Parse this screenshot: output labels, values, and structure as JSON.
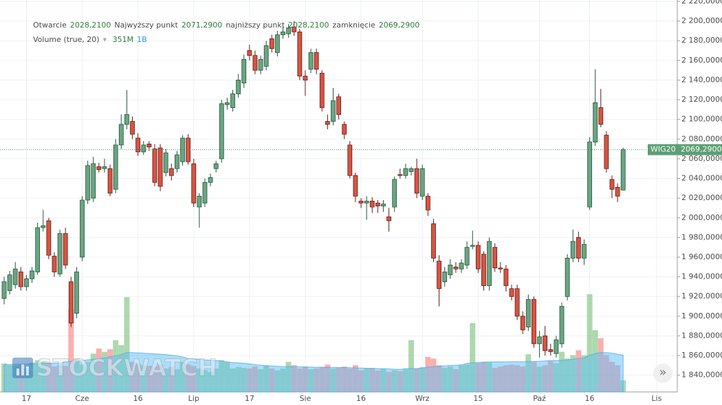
{
  "chart_data": {
    "type": "candlestick",
    "symbol": "WIG20",
    "last_price_label": "2069,2900",
    "ohlc_legend": [
      {
        "name": "Otwarcie",
        "value": "2028,2100"
      },
      {
        "name": "Najwyższy punkt",
        "value": "2071,2900"
      },
      {
        "name": "najniższy punkt",
        "value": "2028,2100"
      },
      {
        "name": "zamknięcie",
        "value": "2069,2900"
      }
    ],
    "volume_legend": "Volume (true, 20)",
    "volume_label": "351M",
    "volume_ma_label": "1B",
    "watermark": "STOCKWATCH",
    "categories": [
      null,
      null,
      null,
      null,
      "17",
      null,
      null,
      null,
      null,
      null,
      null,
      null,
      null,
      null,
      "Cze",
      null,
      null,
      null,
      null,
      null,
      null,
      null,
      null,
      null,
      "16",
      null,
      null,
      null,
      null,
      null,
      null,
      null,
      null,
      null,
      "Lip",
      null,
      null,
      null,
      null,
      null,
      null,
      null,
      null,
      null,
      "17",
      null,
      null,
      null,
      null,
      null,
      null,
      null,
      null,
      null,
      "Sie",
      null,
      null,
      null,
      null,
      null,
      null,
      null,
      null,
      null,
      "16",
      null,
      null,
      null,
      null,
      null,
      null,
      null,
      null,
      null,
      null,
      "Wrz",
      null,
      null,
      null,
      null,
      null,
      null,
      null,
      null,
      null,
      "15",
      null,
      null,
      null,
      null,
      null,
      null,
      null,
      null,
      null,
      null,
      "Paź",
      null,
      null,
      null,
      null,
      null,
      null,
      null,
      null,
      "16",
      null,
      null,
      null,
      null,
      null,
      null,
      null,
      null,
      null,
      null,
      null,
      "Lis"
    ],
    "open": [
      1918,
      1926,
      1932,
      1945,
      1930,
      1938,
      1945,
      1990,
      1997,
      1961,
      1943,
      1984,
      1935,
      1903,
      1960,
      2018,
      2020,
      2052,
      2050,
      2050,
      2029,
      2074,
      2095,
      2098,
      2081,
      2067,
      2075,
      2070,
      2071,
      2046,
      2050,
      2050,
      2057,
      2081,
      2055,
      2011,
      2015,
      2036,
      2050,
      2060,
      2115,
      2112,
      2126,
      2137,
      2170,
      2165,
      2150,
      2154,
      2182,
      2168,
      2186,
      2187,
      2194,
      2189,
      2144,
      2151,
      2168,
      2147,
      2098,
      2098,
      2123,
      2095,
      2074,
      2043,
      2017,
      2015,
      2017,
      2015,
      2012,
      2001,
      2011,
      2044,
      2043,
      2047,
      2050,
      2022,
      2022,
      1994,
      1956,
      1935,
      1942,
      1950,
      1948,
      1952,
      1971,
      1972,
      1963,
      1931,
      1970,
      1949,
      1948,
      1928,
      1928,
      1900,
      1889,
      1917,
      1872,
      1880,
      1866,
      1862,
      1872,
      1920,
      1959,
      1980,
      1959,
      2011,
      2077,
      2112,
      2084,
      2039,
      2031,
      2028.21,
      null,
      null,
      null,
      null,
      null,
      null
    ],
    "high": [
      1940,
      1946,
      1955,
      1950,
      1942,
      1950,
      1995,
      2008,
      2000,
      1965,
      1988,
      1990,
      1940,
      1950,
      2022,
      2058,
      2062,
      2056,
      2060,
      2054,
      2080,
      2105,
      2130,
      2103,
      2086,
      2078,
      2078,
      2075,
      2075,
      2070,
      2055,
      2068,
      2084,
      2085,
      2060,
      2025,
      2040,
      2045,
      2058,
      2120,
      2122,
      2130,
      2146,
      2166,
      2176,
      2170,
      2165,
      2180,
      2186,
      2190,
      2194,
      2197,
      2200,
      2192,
      2150,
      2172,
      2172,
      2150,
      2105,
      2132,
      2126,
      2098,
      2078,
      2046,
      2020,
      2022,
      2021,
      2018,
      2018,
      2010,
      2042,
      2050,
      2055,
      2052,
      2060,
      2054,
      2025,
      1999,
      1962,
      1950,
      1958,
      1955,
      1958,
      1976,
      1987,
      1976,
      1966,
      1980,
      1974,
      1955,
      1952,
      1932,
      1932,
      1905,
      1922,
      1920,
      1885,
      1890,
      1872,
      1880,
      1914,
      1963,
      1988,
      1986,
      1978,
      2082,
      2151,
      2131,
      2088,
      2043,
      2035,
      2071.29,
      null,
      null,
      null,
      null,
      null,
      null
    ],
    "low": [
      1912,
      1922,
      1928,
      1926,
      1926,
      1934,
      1942,
      1986,
      1958,
      1940,
      1940,
      1948,
      1889,
      1898,
      1956,
      2014,
      2016,
      2046,
      2046,
      2022,
      2025,
      2070,
      2090,
      2080,
      2063,
      2064,
      2068,
      2032,
      2027,
      2042,
      2038,
      2046,
      2053,
      2054,
      2011,
      1990,
      2011,
      2032,
      2046,
      2056,
      2110,
      2108,
      2122,
      2132,
      2160,
      2146,
      2146,
      2150,
      2168,
      2164,
      2182,
      2183,
      2185,
      2140,
      2124,
      2147,
      2146,
      2108,
      2090,
      2094,
      2100,
      2080,
      2040,
      2016,
      2010,
      1998,
      2005,
      2005,
      2006,
      1986,
      2006,
      2040,
      2040,
      2043,
      2020,
      2018,
      2002,
      1955,
      1910,
      1930,
      1938,
      1944,
      1944,
      1948,
      1968,
      1944,
      1926,
      1926,
      1945,
      1944,
      1925,
      1916,
      1896,
      1882,
      1885,
      1868,
      1858,
      1860,
      1860,
      1858,
      1868,
      1916,
      1955,
      1955,
      1952,
      2008,
      2073,
      2092,
      2046,
      2020,
      2016,
      2028.21,
      null,
      null,
      null,
      null,
      null,
      null
    ],
    "close": [
      1935,
      1942,
      1948,
      1930,
      1938,
      1946,
      1990,
      1992,
      1962,
      1945,
      1984,
      1952,
      1893,
      1945,
      2018,
      2053,
      2055,
      2049,
      2052,
      2025,
      2074,
      2095,
      2105,
      2085,
      2067,
      2074,
      2072,
      2036,
      2032,
      2066,
      2043,
      2064,
      2081,
      2057,
      2015,
      2022,
      2036,
      2041,
      2055,
      2116,
      2117,
      2126,
      2140,
      2161,
      2165,
      2150,
      2161,
      2175,
      2172,
      2186,
      2189,
      2193,
      2189,
      2144,
      2140,
      2168,
      2151,
      2112,
      2095,
      2119,
      2105,
      2085,
      2043,
      2022,
      2015,
      2017,
      2011,
      2012,
      2014,
      1997,
      2039,
      2043,
      2050,
      2050,
      2025,
      2050,
      2008,
      1959,
      1928,
      1945,
      1952,
      1948,
      1954,
      1970,
      1972,
      1948,
      1931,
      1976,
      1949,
      1948,
      1931,
      1920,
      1900,
      1886,
      1917,
      1872,
      1879,
      1865,
      1864,
      1876,
      1910,
      1959,
      1976,
      1959,
      1973,
      2077,
      2117,
      2095,
      2050,
      2029,
      2022,
      2069.29,
      null,
      null,
      null,
      null,
      null,
      null
    ],
    "volume": [
      850,
      800,
      780,
      820,
      700,
      880,
      950,
      900,
      880,
      760,
      800,
      780,
      2470,
      1000,
      820,
      900,
      1150,
      1300,
      1200,
      1280,
      1550,
      1400,
      2840,
      900,
      850,
      800,
      780,
      760,
      820,
      700,
      750,
      680,
      900,
      820,
      780,
      700,
      650,
      600,
      700,
      950,
      900,
      700,
      750,
      720,
      700,
      760,
      680,
      780,
      700,
      650,
      700,
      900,
      800,
      700,
      760,
      680,
      700,
      750,
      820,
      700,
      720,
      760,
      700,
      800,
      650,
      700,
      720,
      640,
      700,
      600,
      650,
      620,
      680,
      1550,
      700,
      740,
      1050,
      1000,
      800,
      720,
      760,
      680,
      800,
      820,
      2060,
      860,
      900,
      880,
      720,
      760,
      800,
      820,
      800,
      760,
      1130,
      900,
      760,
      800,
      920,
      860,
      1200,
      1000,
      1100,
      1250,
      1100,
      2930,
      1850,
      1610,
      1100,
      900,
      800,
      351,
      null,
      null,
      null,
      null,
      null,
      null
    ],
    "volume_ma": [
      820,
      825,
      830,
      830,
      835,
      840,
      845,
      850,
      855,
      860,
      860,
      900,
      920,
      930,
      940,
      960,
      980,
      1000,
      1020,
      1050,
      1080,
      1120,
      1180,
      1180,
      1170,
      1160,
      1150,
      1140,
      1130,
      1120,
      1100,
      1080,
      1050,
      1000,
      990,
      980,
      960,
      950,
      940,
      930,
      900,
      880,
      870,
      860,
      840,
      820,
      800,
      790,
      780,
      770,
      760,
      760,
      760,
      755,
      750,
      745,
      740,
      740,
      735,
      735,
      730,
      730,
      725,
      720,
      715,
      710,
      705,
      700,
      695,
      690,
      680,
      675,
      700,
      700,
      700,
      720,
      740,
      760,
      770,
      780,
      790,
      800,
      810,
      860,
      870,
      880,
      890,
      900,
      900,
      900,
      900,
      905,
      905,
      905,
      910,
      915,
      920,
      930,
      940,
      940,
      950,
      960,
      980,
      1000,
      1020,
      1100,
      1150,
      1180,
      1180,
      1160,
      1130,
      1100,
      null,
      null,
      null,
      null,
      null,
      null
    ],
    "ylim": [
      1823,
      2221.4
    ],
    "volume_lim": [
      0,
      11740
    ],
    "yticks": [
      {
        "value": 1840,
        "label": "1 840,0000"
      },
      {
        "value": 1860,
        "label": "1 860,0000"
      },
      {
        "value": 1880,
        "label": "1 880,0000"
      },
      {
        "value": 1900,
        "label": "1 900,0000"
      },
      {
        "value": 1920,
        "label": "1 920,0000"
      },
      {
        "value": 1940,
        "label": "1 940,0000"
      },
      {
        "value": 1960,
        "label": "1 960,0000"
      },
      {
        "value": 1980,
        "label": "1 980,0000"
      },
      {
        "value": 2000,
        "label": "2 000,0000"
      },
      {
        "value": 2020,
        "label": "2 020,0000"
      },
      {
        "value": 2040,
        "label": "2 040,0000"
      },
      {
        "value": 2060,
        "label": "2 060,0000"
      },
      {
        "value": 2080,
        "label": "2 080,0000"
      },
      {
        "value": 2100,
        "label": "2 100,0000"
      },
      {
        "value": 2120,
        "label": "2 120,0000"
      },
      {
        "value": 2140,
        "label": "2 140,0000"
      },
      {
        "value": 2160,
        "label": "2 160,0000"
      },
      {
        "value": 2180,
        "label": "2 180,0000"
      },
      {
        "value": 2200,
        "label": "2 200,0000"
      },
      {
        "value": 2220,
        "label": "2 220,0000"
      }
    ],
    "grid": true,
    "up_color": "#6ba583",
    "down_color": "#d75442",
    "volume_up_color": "rgba(120,190,120,0.6)",
    "volume_down_color": "rgba(250,120,120,0.6)",
    "volume_ma_color": "rgba(90,190,245,0.5)"
  }
}
